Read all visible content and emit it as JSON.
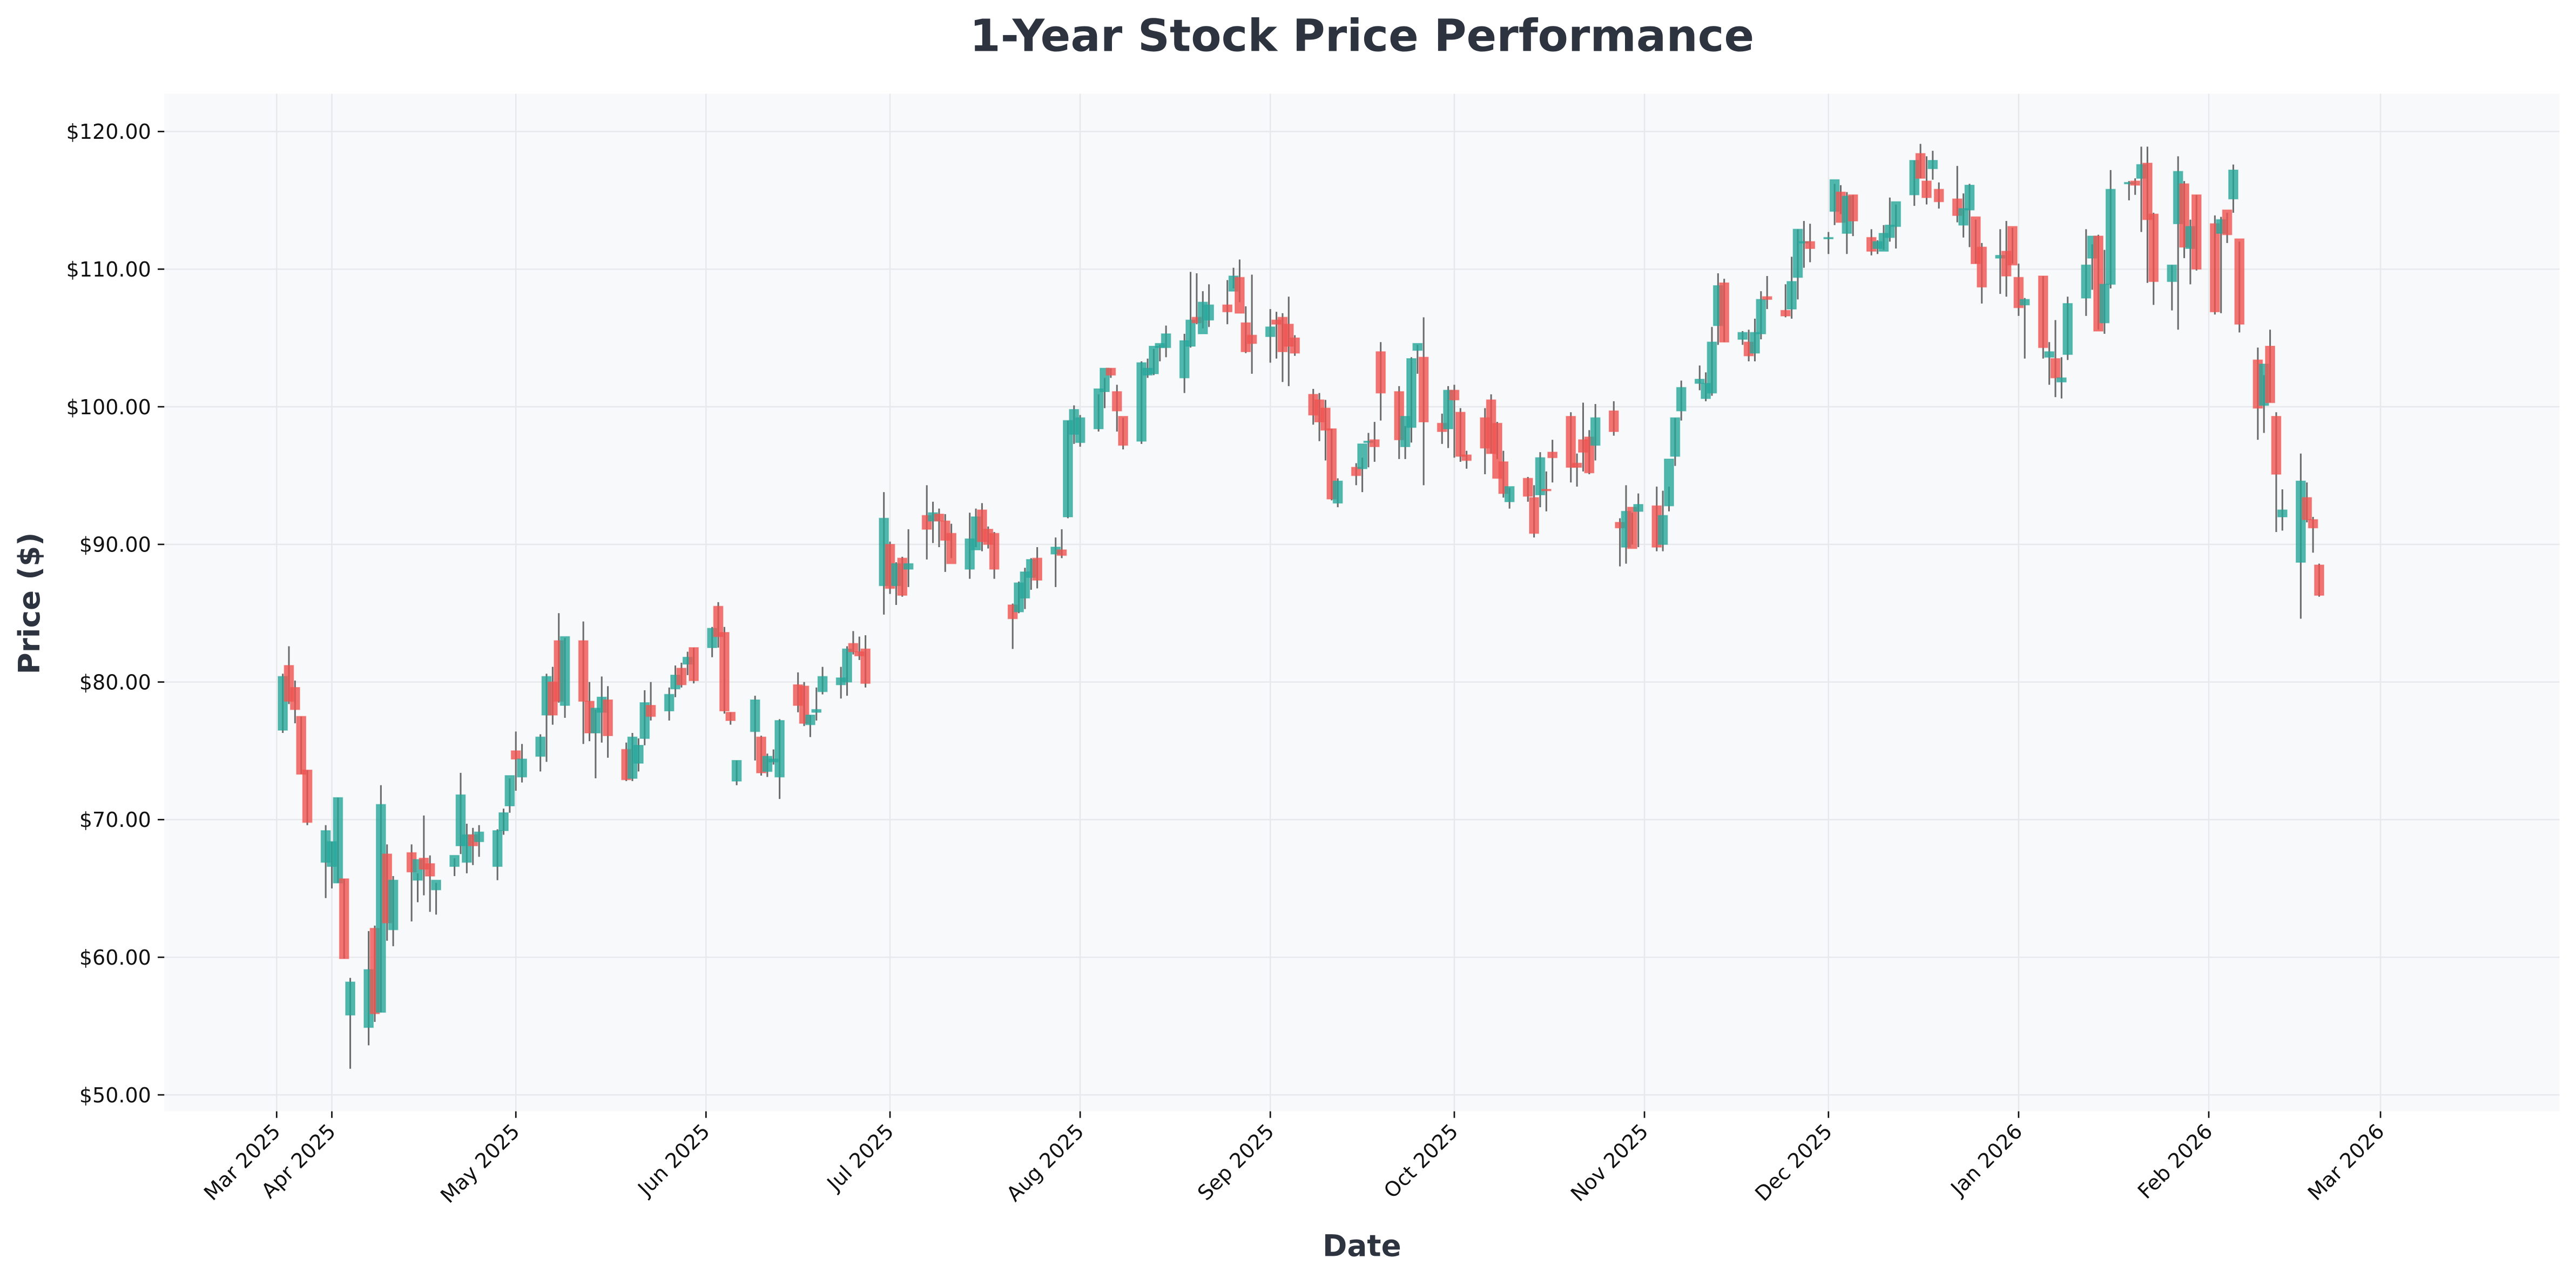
{
  "chart_data": {
    "type": "candlestick",
    "title": "1-Year Stock Price Performance",
    "xlabel": "Date",
    "ylabel": "Price ($)",
    "ylim": [
      49,
      122.5
    ],
    "yticks": [
      50,
      60,
      70,
      80,
      90,
      100,
      110,
      120
    ],
    "ytick_labels": [
      "$50.00",
      "$60.00",
      "$70.00",
      "$80.00",
      "$90.00",
      "$100.00",
      "$110.00",
      "$120.00"
    ],
    "xlim": [
      "2025-03-06",
      "2026-03-31"
    ],
    "xticks": [
      {
        "date": "2025-03-23",
        "label": "Mar 2025"
      },
      {
        "date": "2025-04-01",
        "label": "Apr 2025"
      },
      {
        "date": "2025-05-01",
        "label": "May 2025"
      },
      {
        "date": "2025-06-01",
        "label": "Jun 2025"
      },
      {
        "date": "2025-07-01",
        "label": "Jul 2025"
      },
      {
        "date": "2025-08-01",
        "label": "Aug 2025"
      },
      {
        "date": "2025-09-01",
        "label": "Sep 2025"
      },
      {
        "date": "2025-10-01",
        "label": "Oct 2025"
      },
      {
        "date": "2025-11-01",
        "label": "Nov 2025"
      },
      {
        "date": "2025-12-01",
        "label": "Dec 2025"
      },
      {
        "date": "2026-01-01",
        "label": "Jan 2026"
      },
      {
        "date": "2026-02-01",
        "label": "Feb 2026"
      },
      {
        "date": "2026-03-01",
        "label": "Mar 2026"
      }
    ],
    "grid": true,
    "legend": "none",
    "colors": {
      "up": "#26a69a",
      "down": "#ef5350",
      "wick": "#6b6b6b",
      "plot_bg": "#f8f9fa",
      "grid": "#e6e8eb",
      "text": "#2d3440"
    },
    "start_date": "2025-03-24",
    "ohlc_fields": [
      "open",
      "high",
      "low",
      "close"
    ],
    "ohlc": [
      [
        76.5,
        80.6,
        76.3,
        80.4
      ],
      [
        81.2,
        82.6,
        78.4,
        78.6
      ],
      [
        79.6,
        80.1,
        77.0,
        78.0
      ],
      [
        77.5,
        77.5,
        73.3,
        73.3
      ],
      [
        73.6,
        73.6,
        69.6,
        69.8
      ],
      [
        66.9,
        69.6,
        64.3,
        69.2
      ],
      [
        66.6,
        68.4,
        65.0,
        68.4
      ],
      [
        65.4,
        71.6,
        65.4,
        71.6
      ],
      [
        65.7,
        65.7,
        59.9,
        59.9
      ],
      [
        55.8,
        58.5,
        51.9,
        58.2
      ],
      [
        54.9,
        61.9,
        53.6,
        59.1
      ],
      [
        62.1,
        62.3,
        55.3,
        55.9
      ],
      [
        56.0,
        72.5,
        56.0,
        71.1
      ],
      [
        67.5,
        68.2,
        61.2,
        62.5
      ],
      [
        62.0,
        65.9,
        60.8,
        65.6
      ],
      [
        67.6,
        68.2,
        62.6,
        66.2
      ],
      [
        65.6,
        66.1,
        64.0,
        67.1
      ],
      [
        67.2,
        70.3,
        64.5,
        66.4
      ],
      [
        66.8,
        67.4,
        63.3,
        65.9
      ],
      [
        64.9,
        65.4,
        63.1,
        65.6
      ],
      [
        66.6,
        67.2,
        65.9,
        67.4
      ],
      [
        68.1,
        73.4,
        67.5,
        71.8
      ],
      [
        66.9,
        69.7,
        66.1,
        68.9
      ],
      [
        68.9,
        69.4,
        66.7,
        68.1
      ],
      [
        68.4,
        69.6,
        67.3,
        69.1
      ],
      [
        66.6,
        69.3,
        65.6,
        69.2
      ],
      [
        69.2,
        70.8,
        68.9,
        70.5
      ],
      [
        71.0,
        73.0,
        70.5,
        73.2
      ],
      [
        75.0,
        76.4,
        72.1,
        74.4
      ],
      [
        73.1,
        75.5,
        72.7,
        74.4
      ],
      [
        74.6,
        76.2,
        73.5,
        76.0
      ],
      [
        77.6,
        80.6,
        74.2,
        80.4
      ],
      [
        80.0,
        81.1,
        76.9,
        77.6
      ],
      [
        83.0,
        85.0,
        78.5,
        78.6
      ],
      [
        78.3,
        83.2,
        77.4,
        83.3
      ],
      [
        83.0,
        84.4,
        75.5,
        78.6
      ],
      [
        78.6,
        80.0,
        75.7,
        76.3
      ],
      [
        76.3,
        78.0,
        73.0,
        78.1
      ],
      [
        77.8,
        80.4,
        75.6,
        78.9
      ],
      [
        78.7,
        79.7,
        74.5,
        76.1
      ],
      [
        75.1,
        75.6,
        72.8,
        72.9
      ],
      [
        73.0,
        76.3,
        72.8,
        76.0
      ],
      [
        74.1,
        75.9,
        73.5,
        75.4
      ],
      [
        75.9,
        79.4,
        75.4,
        78.5
      ],
      [
        78.3,
        80.0,
        77.2,
        77.5
      ],
      [
        77.9,
        79.6,
        77.2,
        79.1
      ],
      [
        79.5,
        81.2,
        78.9,
        80.5
      ],
      [
        81.0,
        81.4,
        79.6,
        79.8
      ],
      [
        81.3,
        82.2,
        80.5,
        81.8
      ],
      [
        82.5,
        82.5,
        79.9,
        80.1
      ],
      [
        82.5,
        84.0,
        81.8,
        83.9
      ],
      [
        85.5,
        85.8,
        82.5,
        83.3
      ],
      [
        83.6,
        84.0,
        77.7,
        77.9
      ],
      [
        77.8,
        77.8,
        76.9,
        77.2
      ],
      [
        72.8,
        74.3,
        72.5,
        74.3
      ],
      [
        76.4,
        79.0,
        74.3,
        78.7
      ],
      [
        76.0,
        76.1,
        73.2,
        73.4
      ],
      [
        73.5,
        74.8,
        73.1,
        74.6
      ],
      [
        74.2,
        75.1,
        74.0,
        74.4
      ],
      [
        73.1,
        77.3,
        71.5,
        77.2
      ],
      [
        79.8,
        80.7,
        77.8,
        78.3
      ],
      [
        79.7,
        80.0,
        76.8,
        77.0
      ],
      [
        76.9,
        77.6,
        76.0,
        77.6
      ],
      [
        77.8,
        79.6,
        77.2,
        78.0
      ],
      [
        79.3,
        81.1,
        79.1,
        80.4
      ],
      [
        79.8,
        81.1,
        78.8,
        80.3
      ],
      [
        80.0,
        82.6,
        79.0,
        82.4
      ],
      [
        82.8,
        83.7,
        82.0,
        82.2
      ],
      [
        82.2,
        83.3,
        81.6,
        81.9
      ],
      [
        82.4,
        83.4,
        79.6,
        79.9
      ],
      [
        87.0,
        93.8,
        84.9,
        91.9
      ],
      [
        90.0,
        90.2,
        86.4,
        86.8
      ],
      [
        87.0,
        88.7,
        85.6,
        88.6
      ],
      [
        89.0,
        89.1,
        86.2,
        86.3
      ],
      [
        88.2,
        91.1,
        86.9,
        88.6
      ],
      [
        92.1,
        94.3,
        88.9,
        91.1
      ],
      [
        91.7,
        93.1,
        90.1,
        92.3
      ],
      [
        92.2,
        92.6,
        89.8,
        91.7
      ],
      [
        91.7,
        92.2,
        88.0,
        90.3
      ],
      [
        90.8,
        91.5,
        89.0,
        88.6
      ],
      [
        88.2,
        92.3,
        87.5,
        90.4
      ],
      [
        89.6,
        92.6,
        89.8,
        92.0
      ],
      [
        92.5,
        93.0,
        89.5,
        90.2
      ],
      [
        91.1,
        91.3,
        89.7,
        90.0
      ],
      [
        90.8,
        90.9,
        87.5,
        88.2
      ],
      [
        85.6,
        85.7,
        82.4,
        84.6
      ],
      [
        85.1,
        87.3,
        85.0,
        87.2
      ],
      [
        86.1,
        88.3,
        85.3,
        88.0
      ],
      [
        87.6,
        89.0,
        86.7,
        88.9
      ],
      [
        89.0,
        89.8,
        86.8,
        87.4
      ],
      [
        89.3,
        90.5,
        86.9,
        89.8
      ],
      [
        89.6,
        91.1,
        89.0,
        89.2
      ],
      [
        92.0,
        99.0,
        91.9,
        99.0
      ],
      [
        98.0,
        100.1,
        97.3,
        99.8
      ],
      [
        97.4,
        99.4,
        97.1,
        99.2
      ],
      [
        98.4,
        100.9,
        98.2,
        101.3
      ],
      [
        101.1,
        102.1,
        99.9,
        102.8
      ],
      [
        102.8,
        102.8,
        102.1,
        102.3
      ],
      [
        101.1,
        101.6,
        98.2,
        99.7
      ],
      [
        99.3,
        99.2,
        96.9,
        97.2
      ],
      [
        97.5,
        103.3,
        97.3,
        103.2
      ],
      [
        102.3,
        103.5,
        102.1,
        102.8
      ],
      [
        102.4,
        104.2,
        102.3,
        104.4
      ],
      [
        104.3,
        104.5,
        103.3,
        104.6
      ],
      [
        104.3,
        105.9,
        103.6,
        105.3
      ],
      [
        102.1,
        105.3,
        101.0,
        104.8
      ],
      [
        104.4,
        109.8,
        104.3,
        106.3
      ],
      [
        106.5,
        109.7,
        106.0,
        106.1
      ],
      [
        105.3,
        108.4,
        105.7,
        107.6
      ],
      [
        106.3,
        108.9,
        105.8,
        107.4
      ],
      [
        107.4,
        109.2,
        106.0,
        106.9
      ],
      [
        108.4,
        110.1,
        108.6,
        109.5
      ],
      [
        109.4,
        110.7,
        107.6,
        106.8
      ],
      [
        106.1,
        107.3,
        103.9,
        104.0
      ],
      [
        105.2,
        109.6,
        102.4,
        104.6
      ],
      [
        105.1,
        107.1,
        103.2,
        105.8
      ],
      [
        106.3,
        106.9,
        103.5,
        106.0
      ],
      [
        106.5,
        106.8,
        101.8,
        104.0
      ],
      [
        106.0,
        108.0,
        101.5,
        104.4
      ],
      [
        105.0,
        105.2,
        103.7,
        103.9
      ],
      [
        100.9,
        101.3,
        98.7,
        99.4
      ],
      [
        100.5,
        101.0,
        97.5,
        98.9
      ],
      [
        99.9,
        100.5,
        96.1,
        98.3
      ],
      [
        98.4,
        98.4,
        93.2,
        93.3
      ],
      [
        93.0,
        94.8,
        92.7,
        94.6
      ],
      [
        95.6,
        95.9,
        94.3,
        95.0
      ],
      [
        95.5,
        96.3,
        93.8,
        97.3
      ],
      [
        97.4,
        98.1,
        95.6,
        97.5
      ],
      [
        97.6,
        98.9,
        96.0,
        97.1
      ],
      [
        104.0,
        104.7,
        99.0,
        101.0
      ],
      [
        101.1,
        101.5,
        96.2,
        97.6
      ],
      [
        97.1,
        98.6,
        96.2,
        99.3
      ],
      [
        98.5,
        103.6,
        97.4,
        103.5
      ],
      [
        104.1,
        104.5,
        102.4,
        104.6
      ],
      [
        103.6,
        106.5,
        94.3,
        98.9
      ],
      [
        98.8,
        99.5,
        97.3,
        98.2
      ],
      [
        98.4,
        101.5,
        97.0,
        101.2
      ],
      [
        101.2,
        101.6,
        96.3,
        100.5
      ],
      [
        99.6,
        99.9,
        96.0,
        96.4
      ],
      [
        96.5,
        96.8,
        95.5,
        96.1
      ],
      [
        99.2,
        99.9,
        95.1,
        97.0
      ],
      [
        100.5,
        100.9,
        96.6,
        96.6
      ],
      [
        98.8,
        98.9,
        96.2,
        94.8
      ],
      [
        96.0,
        96.8,
        93.4,
        93.7
      ],
      [
        93.1,
        94.1,
        92.6,
        94.2
      ],
      [
        94.8,
        94.9,
        93.1,
        93.5
      ],
      [
        93.4,
        94.3,
        90.5,
        90.8
      ],
      [
        93.6,
        96.7,
        92.7,
        96.3
      ],
      [
        94.0,
        95.3,
        92.4,
        93.9
      ],
      [
        96.7,
        97.6,
        94.5,
        96.3
      ],
      [
        99.3,
        99.6,
        94.5,
        95.6
      ],
      [
        95.9,
        96.6,
        94.2,
        95.6
      ],
      [
        97.6,
        100.3,
        95.3,
        96.7
      ],
      [
        97.8,
        98.3,
        95.1,
        95.2
      ],
      [
        97.2,
        100.2,
        96.1,
        99.2
      ],
      [
        99.7,
        100.4,
        97.9,
        98.2
      ],
      [
        91.6,
        91.9,
        88.4,
        91.2
      ],
      [
        89.8,
        94.3,
        88.6,
        92.4
      ],
      [
        92.7,
        92.3,
        90.0,
        89.7
      ],
      [
        92.4,
        93.7,
        89.8,
        92.9
      ],
      [
        92.8,
        94.2,
        89.5,
        89.8
      ],
      [
        90.0,
        93.9,
        89.5,
        92.1
      ],
      [
        92.8,
        94.2,
        92.4,
        96.2
      ],
      [
        96.4,
        99.2,
        95.7,
        99.2
      ],
      [
        99.7,
        101.9,
        99.0,
        101.4
      ],
      [
        101.7,
        103.0,
        101.2,
        102.0
      ],
      [
        100.6,
        102.5,
        100.4,
        101.7
      ],
      [
        101.0,
        105.8,
        100.8,
        104.7
      ],
      [
        105.9,
        109.7,
        104.5,
        108.8
      ],
      [
        109.0,
        109.3,
        104.7,
        104.7
      ],
      [
        104.9,
        105.5,
        104.5,
        105.4
      ],
      [
        104.7,
        105.6,
        103.3,
        103.7
      ],
      [
        103.9,
        106.4,
        103.3,
        105.4
      ],
      [
        105.3,
        108.4,
        104.9,
        107.8
      ],
      [
        108.0,
        109.5,
        107.1,
        107.8
      ],
      [
        107.0,
        108.9,
        106.5,
        106.6
      ],
      [
        107.1,
        110.9,
        106.4,
        109.1
      ],
      [
        109.4,
        112.9,
        107.8,
        112.9
      ],
      [
        111.9,
        113.5,
        110.1,
        112.0
      ],
      [
        112.0,
        113.3,
        110.5,
        111.5
      ],
      [
        112.3,
        112.7,
        111.1,
        112.3
      ],
      [
        114.2,
        116.2,
        113.2,
        116.5
      ],
      [
        115.6,
        116.1,
        114.0,
        113.4
      ],
      [
        112.6,
        115.6,
        111.1,
        115.3
      ],
      [
        115.4,
        115.4,
        112.4,
        113.5
      ],
      [
        112.3,
        112.9,
        111.0,
        111.3
      ],
      [
        111.5,
        112.1,
        111.1,
        112.0
      ],
      [
        111.3,
        113.2,
        111.4,
        112.6
      ],
      [
        112.3,
        115.2,
        112.0,
        113.2
      ],
      [
        113.1,
        114.7,
        111.5,
        114.9
      ],
      [
        115.4,
        117.9,
        114.6,
        117.9
      ],
      [
        118.4,
        119.1,
        116.6,
        116.6
      ],
      [
        116.4,
        118.2,
        114.7,
        115.2
      ],
      [
        117.3,
        118.6,
        116.5,
        117.9
      ],
      [
        115.8,
        116.3,
        114.4,
        114.9
      ],
      [
        115.1,
        117.5,
        113.4,
        113.9
      ],
      [
        113.2,
        115.5,
        112.3,
        114.4
      ],
      [
        114.3,
        116.2,
        111.6,
        116.1
      ],
      [
        113.8,
        113.6,
        110.4,
        110.4
      ],
      [
        111.6,
        111.9,
        107.5,
        108.7
      ],
      [
        110.8,
        112.9,
        108.2,
        111.0
      ],
      [
        111.3,
        113.5,
        108.0,
        109.5
      ],
      [
        113.1,
        113.0,
        110.4,
        110.3
      ],
      [
        109.4,
        110.4,
        106.6,
        107.2
      ],
      [
        107.4,
        107.9,
        103.5,
        107.8
      ],
      [
        109.5,
        109.5,
        103.5,
        104.3
      ],
      [
        103.6,
        104.7,
        101.6,
        104.0
      ],
      [
        103.5,
        106.3,
        100.7,
        102.1
      ],
      [
        101.8,
        103.6,
        100.6,
        102.1
      ],
      [
        103.8,
        108.0,
        103.4,
        107.5
      ],
      [
        107.9,
        112.9,
        106.6,
        110.3
      ],
      [
        110.8,
        111.8,
        108.5,
        112.4
      ],
      [
        112.4,
        112.5,
        105.6,
        105.5
      ],
      [
        106.1,
        111.4,
        105.3,
        108.9
      ],
      [
        108.9,
        117.2,
        108.6,
        115.8
      ],
      [
        116.2,
        116.4,
        115.0,
        116.3
      ],
      [
        116.4,
        116.6,
        115.4,
        116.1
      ],
      [
        116.6,
        118.9,
        112.7,
        117.6
      ],
      [
        117.7,
        118.9,
        109.0,
        113.6
      ],
      [
        114.0,
        114.1,
        107.4,
        109.1
      ],
      [
        109.1,
        110.3,
        107.0,
        110.3
      ],
      [
        113.3,
        118.2,
        105.6,
        117.1
      ],
      [
        116.2,
        116.4,
        110.8,
        111.6
      ],
      [
        111.5,
        113.6,
        108.9,
        113.1
      ],
      [
        115.4,
        115.4,
        109.9,
        110.0
      ],
      [
        113.3,
        113.9,
        106.7,
        106.9
      ],
      [
        112.6,
        113.8,
        106.8,
        113.6
      ],
      [
        114.3,
        114.1,
        111.9,
        112.5
      ],
      [
        115.1,
        117.6,
        114.1,
        117.2
      ],
      [
        112.2,
        112.0,
        105.4,
        106.0
      ],
      [
        103.4,
        104.3,
        97.6,
        99.9
      ],
      [
        100.1,
        102.3,
        98.1,
        103.1
      ],
      [
        104.4,
        105.6,
        100.3,
        100.3
      ],
      [
        99.3,
        99.6,
        90.9,
        95.1
      ],
      [
        92.0,
        94.0,
        91.0,
        92.5
      ],
      [
        88.7,
        96.6,
        84.6,
        94.6
      ],
      [
        93.4,
        94.5,
        91.6,
        91.8
      ],
      [
        91.8,
        92.0,
        89.4,
        91.2
      ],
      [
        88.5,
        88.6,
        86.2,
        86.3
      ]
    ]
  }
}
